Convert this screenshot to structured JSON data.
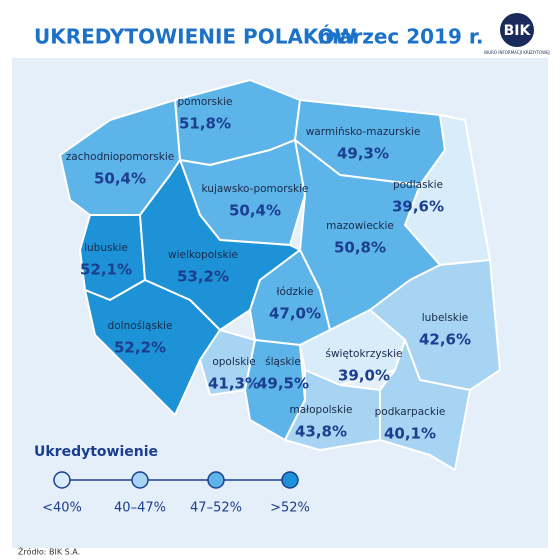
{
  "header": {
    "title": "UKREDYTOWIENIE POLAKÓW",
    "subtitle": "marzec 2019 r.",
    "logo": "BIK",
    "logo_caption": "BIURO INFORMACJI KREDYTOWEJ"
  },
  "map": {
    "regions": [
      {
        "name": "pomorskie",
        "value": 51.8,
        "label": "51,8%",
        "color": "#5db4e9"
      },
      {
        "name": "warmińsko-mazurskie",
        "value": 49.3,
        "label": "49,3%",
        "color": "#5db4e9"
      },
      {
        "name": "zachodniopomorskie",
        "value": 50.4,
        "label": "50,4%",
        "color": "#5db4e9"
      },
      {
        "name": "podlaskie",
        "value": 39.6,
        "label": "39,6%",
        "color": "#d8ecfa"
      },
      {
        "name": "kujawsko-pomorskie",
        "value": 50.4,
        "label": "50,4%",
        "color": "#5db4e9"
      },
      {
        "name": "mazowieckie",
        "value": 50.8,
        "label": "50,8%",
        "color": "#5db4e9"
      },
      {
        "name": "lubuskie",
        "value": 52.1,
        "label": "52,1%",
        "color": "#1d92d6"
      },
      {
        "name": "wielkopolskie",
        "value": 53.2,
        "label": "53,2%",
        "color": "#1d92d6"
      },
      {
        "name": "łódzkie",
        "value": 47.0,
        "label": "47,0%",
        "color": "#5db4e9"
      },
      {
        "name": "lubelskie",
        "value": 42.6,
        "label": "42,6%",
        "color": "#a8d4f3"
      },
      {
        "name": "dolnośląskie",
        "value": 52.2,
        "label": "52,2%",
        "color": "#1d92d6"
      },
      {
        "name": "opolskie",
        "value": 41.3,
        "label": "41,3%",
        "color": "#a8d4f3"
      },
      {
        "name": "śląskie",
        "value": 49.5,
        "label": "49,5%",
        "color": "#5db4e9"
      },
      {
        "name": "świętokrzyskie",
        "value": 39.0,
        "label": "39,0%",
        "color": "#d8ecfa"
      },
      {
        "name": "małopolskie",
        "value": 43.8,
        "label": "43,8%",
        "color": "#a8d4f3"
      },
      {
        "name": "podkarpackie",
        "value": 40.1,
        "label": "40,1%",
        "color": "#a8d4f3"
      }
    ],
    "legend": {
      "title": "Ukredytowienie",
      "items": [
        {
          "label": "<40%",
          "color": "#d8ecfa"
        },
        {
          "label": "40–47%",
          "color": "#a8d4f3"
        },
        {
          "label": "47–52%",
          "color": "#5db4e9"
        },
        {
          "label": ">52%",
          "color": "#1d92d6"
        }
      ]
    }
  },
  "source": "Źródło: BIK S.A."
}
